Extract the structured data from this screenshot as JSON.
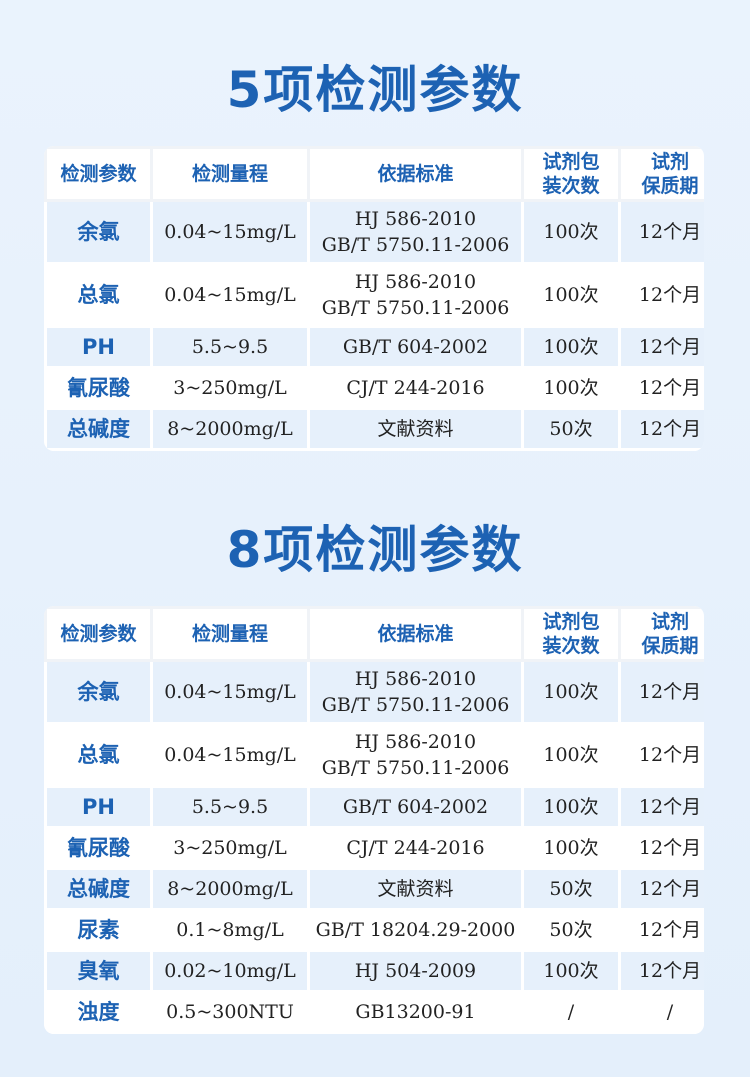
{
  "sections": [
    {
      "title": "5项检测参数",
      "headers": [
        "检测参数",
        "检测量程",
        "依据标准",
        "试剂包\n装次数",
        "试剂\n保质期"
      ],
      "rows": [
        {
          "name": "余氯",
          "range": "0.04~15mg/L",
          "standard": "HJ 586-2010\nGB/T 5750.11-2006",
          "count": "100次",
          "shelf": "12个月"
        },
        {
          "name": "总氯",
          "range": "0.04~15mg/L",
          "standard": "HJ 586-2010\nGB/T 5750.11-2006",
          "count": "100次",
          "shelf": "12个月"
        },
        {
          "name": "PH",
          "range": "5.5~9.5",
          "standard": "GB/T 604-2002",
          "count": "100次",
          "shelf": "12个月"
        },
        {
          "name": "氰尿酸",
          "range": "3~250mg/L",
          "standard": "CJ/T 244-2016",
          "count": "100次",
          "shelf": "12个月"
        },
        {
          "name": "总碱度",
          "range": "8~2000mg/L",
          "standard": "文献资料",
          "count": "50次",
          "shelf": "12个月"
        }
      ]
    },
    {
      "title": "8项检测参数",
      "headers": [
        "检测参数",
        "检测量程",
        "依据标准",
        "试剂包\n装次数",
        "试剂\n保质期"
      ],
      "rows": [
        {
          "name": "余氯",
          "range": "0.04~15mg/L",
          "standard": "HJ 586-2010\nGB/T 5750.11-2006",
          "count": "100次",
          "shelf": "12个月"
        },
        {
          "name": "总氯",
          "range": "0.04~15mg/L",
          "standard": "HJ 586-2010\nGB/T 5750.11-2006",
          "count": "100次",
          "shelf": "12个月"
        },
        {
          "name": "PH",
          "range": "5.5~9.5",
          "standard": "GB/T 604-2002",
          "count": "100次",
          "shelf": "12个月"
        },
        {
          "name": "氰尿酸",
          "range": "3~250mg/L",
          "standard": "CJ/T 244-2016",
          "count": "100次",
          "shelf": "12个月"
        },
        {
          "name": "总碱度",
          "range": "8~2000mg/L",
          "standard": "文献资料",
          "count": "50次",
          "shelf": "12个月"
        },
        {
          "name": "尿素",
          "range": "0.1~8mg/L",
          "standard": "GB/T 18204.29-2000",
          "count": "50次",
          "shelf": "12个月"
        },
        {
          "name": "臭氧",
          "range": "0.02~10mg/L",
          "standard": "HJ 504-2009",
          "count": "100次",
          "shelf": "12个月"
        },
        {
          "name": "浊度",
          "range": "0.5~300NTU",
          "standard": "GB13200-91",
          "count": "/",
          "shelf": "/"
        }
      ]
    }
  ],
  "colors": {
    "accent": "#1d62b3",
    "row_alt": "#e6f0fb",
    "background": "#eaf3fd"
  }
}
